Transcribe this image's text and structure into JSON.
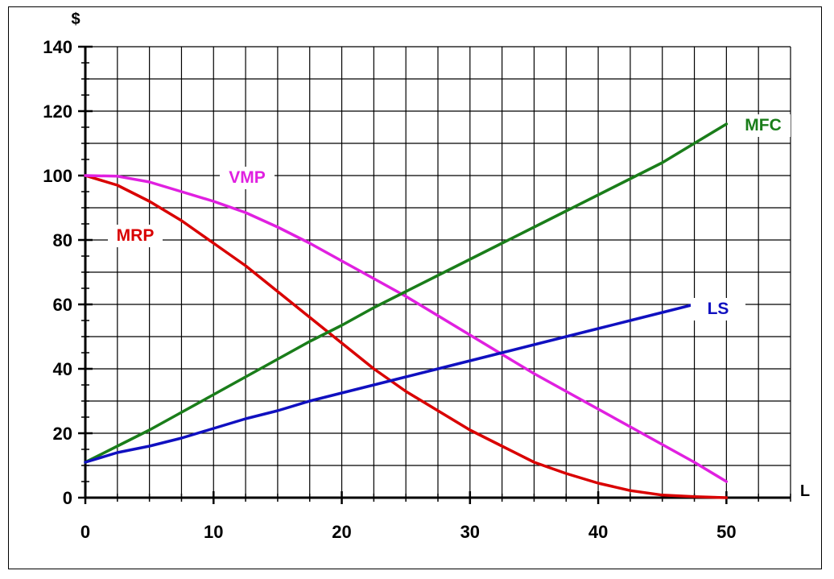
{
  "chart_data": {
    "type": "line",
    "title": "",
    "xlabel": "L",
    "ylabel": "$",
    "xlim": [
      0,
      55
    ],
    "ylim": [
      0,
      140
    ],
    "x_ticks": [
      0,
      10,
      20,
      30,
      40,
      50
    ],
    "y_ticks": [
      0,
      20,
      40,
      60,
      80,
      100,
      120,
      140
    ],
    "grid": true,
    "colors": {
      "grid": "#000000",
      "axis": "#000000"
    },
    "series": [
      {
        "name": "MRP",
        "color": "#d90000",
        "points": [
          [
            0,
            100
          ],
          [
            2.5,
            97
          ],
          [
            5,
            92
          ],
          [
            7.5,
            86
          ],
          [
            10,
            79
          ],
          [
            12.5,
            72
          ],
          [
            15,
            64
          ],
          [
            17.5,
            56
          ],
          [
            20,
            48
          ],
          [
            22.5,
            40
          ],
          [
            25,
            33
          ],
          [
            27.5,
            27
          ],
          [
            30,
            21
          ],
          [
            32.5,
            16
          ],
          [
            35,
            11
          ],
          [
            37.5,
            7.5
          ],
          [
            40,
            4.5
          ],
          [
            42.5,
            2.2
          ],
          [
            45,
            0.8
          ],
          [
            47.5,
            0.3
          ],
          [
            50,
            0
          ]
        ]
      },
      {
        "name": "VMP",
        "color": "#e020e0",
        "points": [
          [
            0,
            100
          ],
          [
            2.5,
            99.8
          ],
          [
            5,
            98
          ],
          [
            7.5,
            95
          ],
          [
            10,
            92
          ],
          [
            12.5,
            88.5
          ],
          [
            15,
            84
          ],
          [
            17.5,
            79
          ],
          [
            20,
            73.5
          ],
          [
            22.5,
            68
          ],
          [
            25,
            62.5
          ],
          [
            27.5,
            56.5
          ],
          [
            30,
            50.5
          ],
          [
            32.5,
            44.5
          ],
          [
            35,
            38.5
          ],
          [
            37.5,
            33
          ],
          [
            40,
            27.5
          ],
          [
            42.5,
            22
          ],
          [
            45,
            16.5
          ],
          [
            47.5,
            11
          ],
          [
            50,
            5
          ]
        ]
      },
      {
        "name": "MFC",
        "color": "#1a7d1a",
        "points": [
          [
            0,
            11
          ],
          [
            2.5,
            16
          ],
          [
            5,
            21
          ],
          [
            7.5,
            26.5
          ],
          [
            10,
            32
          ],
          [
            12.5,
            37.5
          ],
          [
            15,
            43
          ],
          [
            17.5,
            48.5
          ],
          [
            20,
            53.5
          ],
          [
            22.5,
            59
          ],
          [
            25,
            64
          ],
          [
            27.5,
            69
          ],
          [
            30,
            74
          ],
          [
            32.5,
            79
          ],
          [
            35,
            84
          ],
          [
            37.5,
            89
          ],
          [
            40,
            94
          ],
          [
            42.5,
            99
          ],
          [
            45,
            104
          ],
          [
            47.5,
            110
          ],
          [
            50,
            116
          ]
        ]
      },
      {
        "name": "LS",
        "color": "#1010c0",
        "points": [
          [
            0,
            11
          ],
          [
            2.5,
            14
          ],
          [
            5,
            16
          ],
          [
            7.5,
            18.5
          ],
          [
            10,
            21.5
          ],
          [
            12.5,
            24.5
          ],
          [
            15,
            27
          ],
          [
            17.5,
            30
          ],
          [
            20,
            32.5
          ],
          [
            22.5,
            35
          ],
          [
            25,
            37.5
          ],
          [
            27.5,
            40
          ],
          [
            30,
            42.5
          ],
          [
            32.5,
            45
          ],
          [
            35,
            47.5
          ],
          [
            37.5,
            50
          ],
          [
            40,
            52.5
          ],
          [
            42.5,
            55
          ],
          [
            45,
            57.5
          ],
          [
            47.5,
            60
          ]
        ]
      }
    ]
  }
}
